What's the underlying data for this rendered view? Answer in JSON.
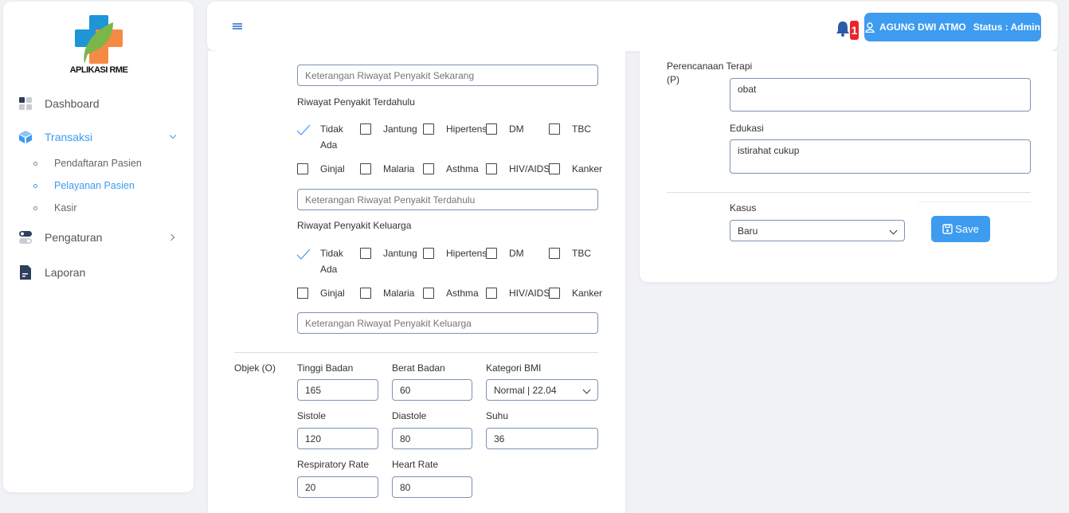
{
  "app": {
    "logo_text": "APLIKASI RME"
  },
  "sidebar": {
    "items": [
      {
        "label": "Dashboard",
        "icon": "dashboard-icon"
      },
      {
        "label": "Transaksi",
        "icon": "cube-icon",
        "active": true,
        "children": [
          {
            "label": "Pendaftaran Pasien"
          },
          {
            "label": "Pelayanan Pasien",
            "active": true
          },
          {
            "label": "Kasir"
          }
        ]
      },
      {
        "label": "Pengaturan",
        "icon": "toggle-icon"
      },
      {
        "label": "Laporan",
        "icon": "document-icon"
      }
    ]
  },
  "topbar": {
    "notification_count": "1",
    "user_name": "AGUNG DWI ATMO",
    "status": "Status : Admin"
  },
  "form": {
    "sekarang_placeholder": "Keterangan Riwayat Penyakit Sekarang",
    "terdahulu": {
      "title": "Riwayat Penyakit Terdahulu",
      "placeholder": "Keterangan Riwayat Penyakit Terdahulu"
    },
    "keluarga": {
      "title": "Riwayat Penyakit Keluarga",
      "placeholder": "Keterangan Riwayat Penyakit Keluarga"
    },
    "diseases": [
      "Tidak Ada",
      "Jantung",
      "Hipertensi",
      "DM",
      "TBC",
      "Ginjal",
      "Malaria",
      "Asthma",
      "HIV/AIDS",
      "Kanker"
    ],
    "checked": [
      "Tidak Ada"
    ],
    "objek": {
      "title": "Objek (O)",
      "tinggi_label": "Tinggi Badan",
      "tinggi": "165",
      "berat_label": "Berat Badan",
      "berat": "60",
      "bmi_label": "Kategori BMI",
      "bmi": "Normal | 22.04",
      "sistole_label": "Sistole",
      "sistole": "120",
      "diastole_label": "Diastole",
      "diastole": "80",
      "suhu_label": "Suhu",
      "suhu": "36",
      "rr_label": "Respiratory Rate",
      "rr": "20",
      "hr_label": "Heart Rate",
      "hr": "80"
    }
  },
  "right": {
    "perencanaan_label": "Perencanaan Terapi",
    "perencanaan_code": "(P)",
    "terapi": "obat",
    "edukasi_label": "Edukasi",
    "edukasi": "istirahat cukup",
    "kasus_label": "Kasus",
    "kasus": "Baru",
    "save_label": "Save"
  },
  "colors": {
    "accent": "#3d9bf0",
    "badge": "#e8262b"
  }
}
